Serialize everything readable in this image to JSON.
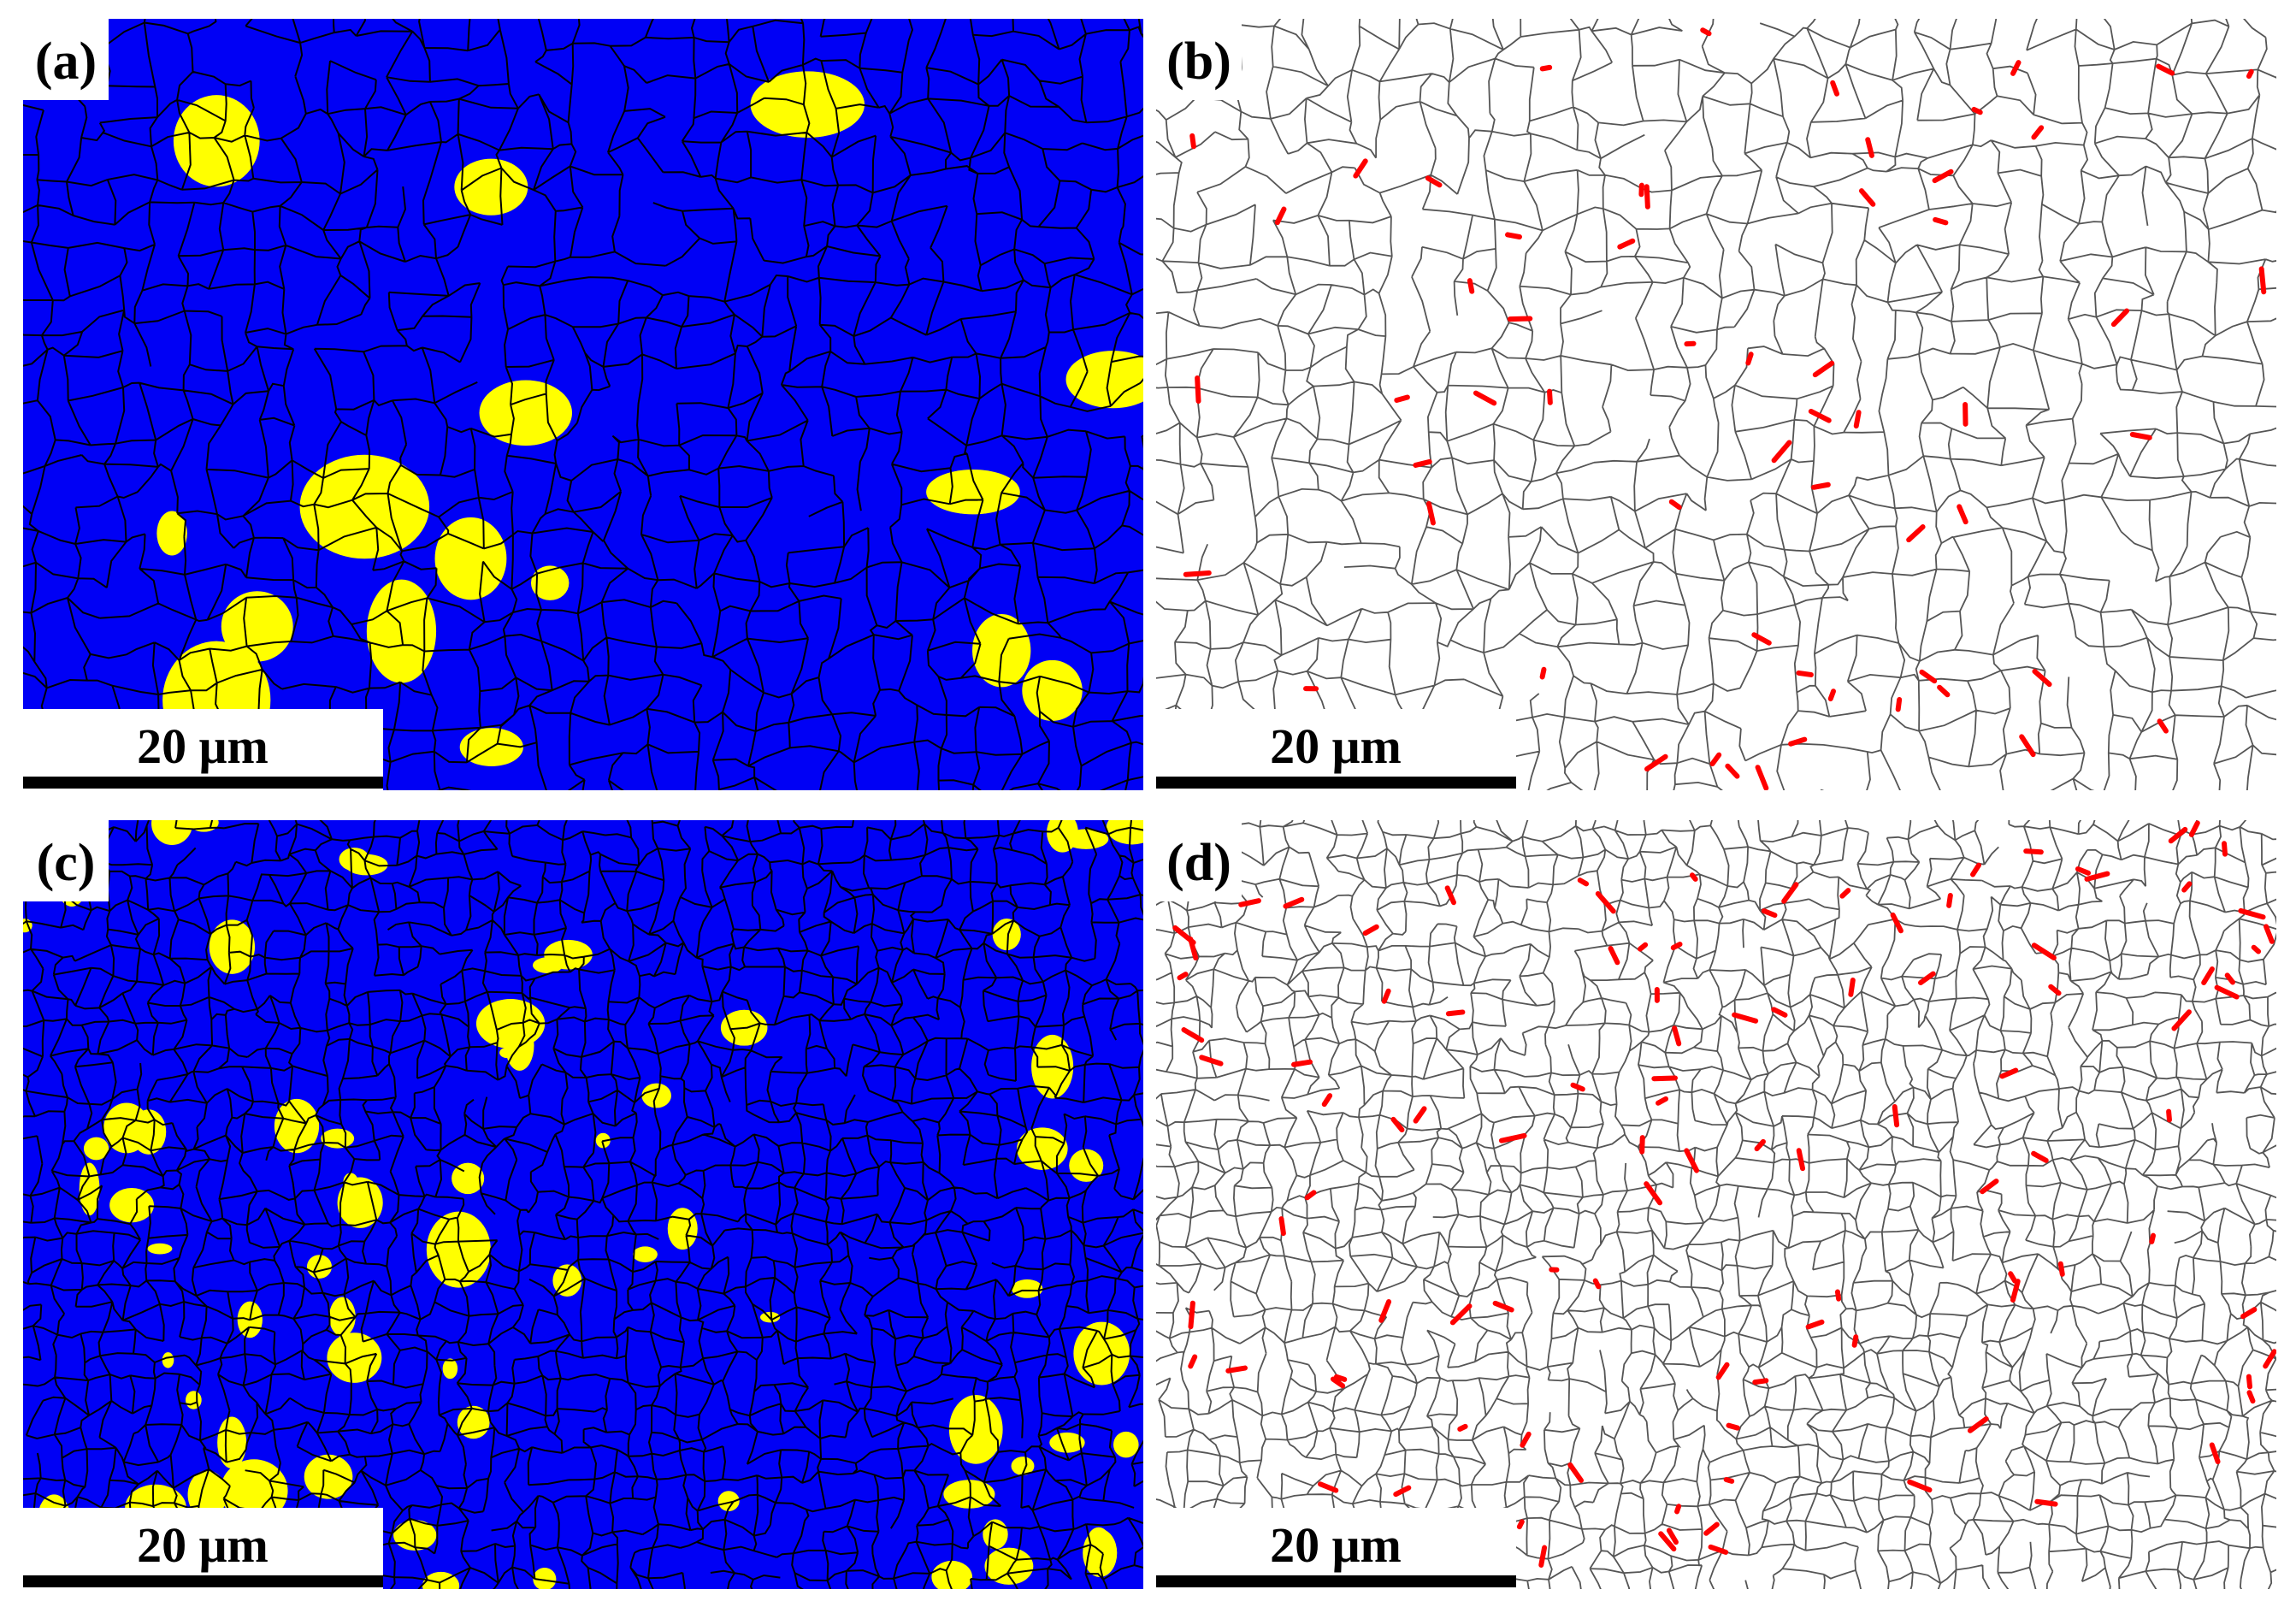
{
  "panels": [
    {
      "label": "(a)",
      "scale_bar": "20 μm"
    },
    {
      "label": "(b)",
      "scale_bar": "20 μm"
    },
    {
      "label": "(c)",
      "scale_bar": "20 μm"
    },
    {
      "label": "(d)",
      "scale_bar": "20 μm"
    }
  ]
}
